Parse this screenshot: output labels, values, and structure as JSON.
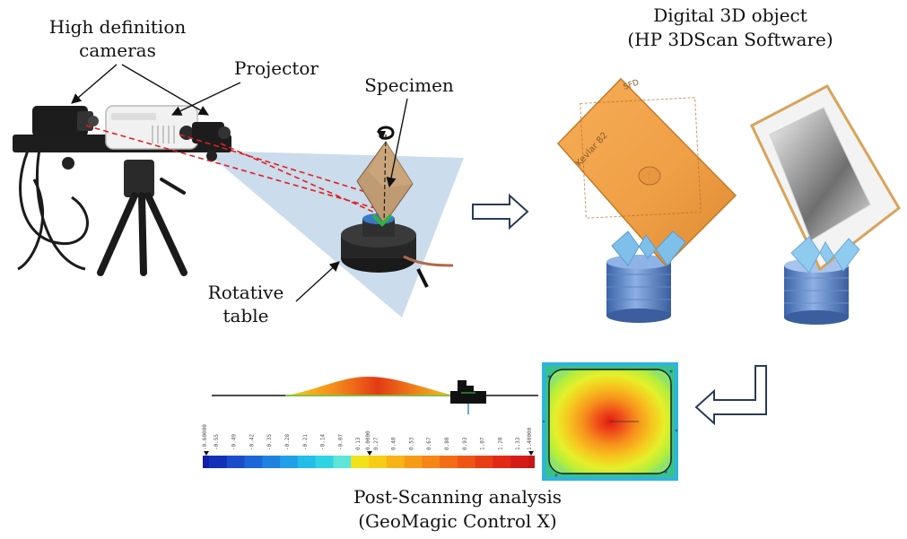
{
  "labels": {
    "cameras_line1": "High definition",
    "cameras_line2": "cameras",
    "projector": "Projector",
    "specimen": "Specimen",
    "rotative_line1": "Rotative",
    "rotative_line2": "table",
    "digital_line1": "Digital 3D object",
    "digital_line2": "(HP 3DScan Software)",
    "post_line1": "Post-Scanning analysis",
    "post_line2": "(GeoMagic Control X)"
  },
  "specimen_marks": {
    "text_left": "Kevlar 82",
    "text_top": "SFD"
  },
  "color_scale": {
    "min_label": "-0.60000",
    "center_label": "0.0000",
    "max_label": "1.40000",
    "tick_labels": [
      "-0.55",
      "-0.49",
      "-0.42",
      "-0.35",
      "-0.28",
      "-0.21",
      "-0.14",
      "-0.07",
      "0.13",
      "0.27",
      "0.40",
      "0.53",
      "0.67",
      "0.80",
      "0.93",
      "1.07",
      "1.20",
      "1.33"
    ],
    "colors": [
      "#1230b8",
      "#1a4ccc",
      "#1d66d8",
      "#1f82e0",
      "#20a0e6",
      "#24bde8",
      "#2fd3e3",
      "#5ee5d9",
      "#f2e21a",
      "#f7cc17",
      "#f8b316",
      "#f79c15",
      "#f58514",
      "#f26d14",
      "#ee5514",
      "#e83d15",
      "#e22916",
      "#d51a17"
    ],
    "end_colors": {
      "min": "#1020a8",
      "max": "#c81616"
    }
  },
  "colors": {
    "kevlar": "#f0a64a",
    "base_blue": "#5a86c8",
    "arrow_outline": "#2a3a58",
    "projection": "#b9d0e6"
  }
}
